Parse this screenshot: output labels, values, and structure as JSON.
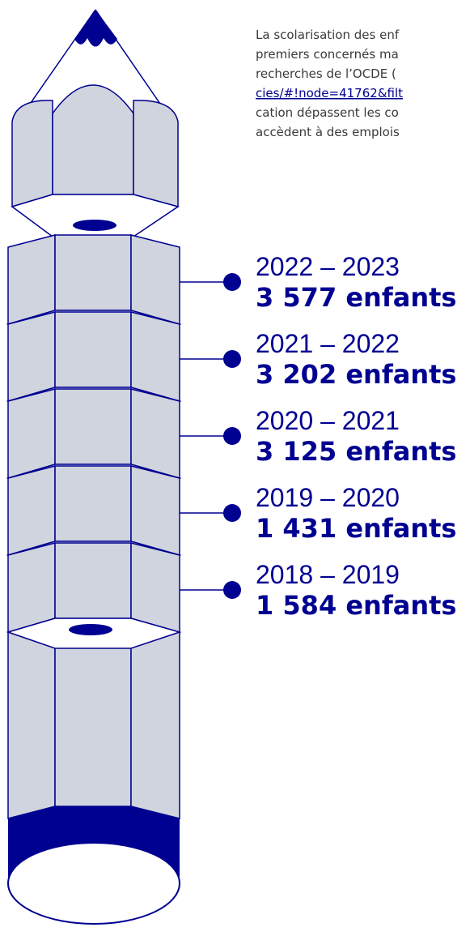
{
  "intro": {
    "lines": [
      "La scolarisation des enf",
      "premiers concernés ma",
      "recherches de l’OCDE (",
      "cies/#!node=41762&filt",
      "cation dépassent les co",
      "accèdent à des emplois"
    ],
    "link_line": 3
  },
  "timeline": {
    "items": [
      {
        "year": "2022 – 2023",
        "count": "3 577 enfants"
      },
      {
        "year": "2021 – 2022",
        "count": "3 202 enfants"
      },
      {
        "year": "2020 – 2021",
        "count": "3 125 enfants"
      },
      {
        "year": "2019 – 2020",
        "count": "1 431 enfants"
      },
      {
        "year": "2018 – 2019",
        "count": "1 584 enfants"
      }
    ]
  }
}
